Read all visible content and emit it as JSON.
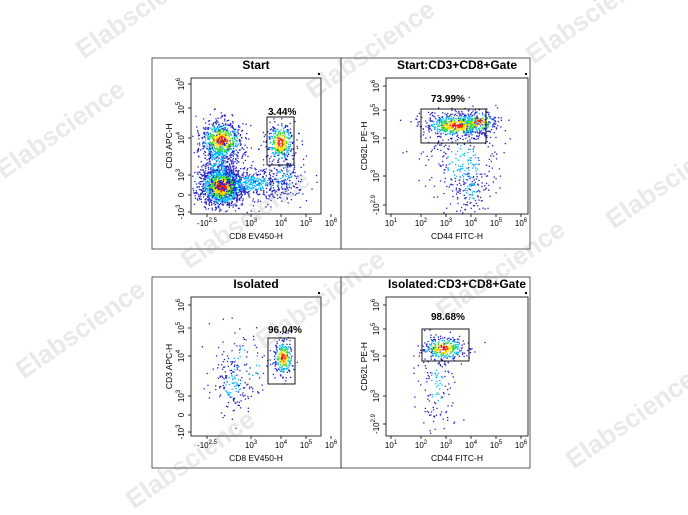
{
  "watermark": "Elabscience",
  "chart_data": [
    {
      "type": "scatter",
      "title": "Start",
      "xlabel": "CD8 EV450-H",
      "ylabel": "CD3 APC-H",
      "xticks": [
        {
          "t": "-10",
          "s": "2.5"
        },
        {
          "t": "10",
          "s": "3"
        },
        {
          "t": "10",
          "s": "4"
        },
        {
          "t": "10",
          "s": "5"
        },
        {
          "t": "10",
          "s": "6"
        }
      ],
      "yticks": [
        {
          "t": "-10",
          "s": "3"
        },
        {
          "t": "0",
          "s": ""
        },
        {
          "t": "10",
          "s": "3"
        },
        {
          "t": "10",
          "s": "4"
        },
        {
          "t": "10",
          "s": "5"
        },
        {
          "t": "10",
          "s": "6"
        }
      ],
      "gate_label": "3.44%"
    },
    {
      "type": "scatter",
      "title": "Start:CD3+CD8+Gate",
      "xlabel": "CD44 FITC-H",
      "ylabel": "CD62L PE-H",
      "xticks": [
        {
          "t": "10",
          "s": "1"
        },
        {
          "t": "10",
          "s": "2"
        },
        {
          "t": "10",
          "s": "3"
        },
        {
          "t": "10",
          "s": "4"
        },
        {
          "t": "10",
          "s": "5"
        },
        {
          "t": "10",
          "s": "6"
        }
      ],
      "yticks": [
        {
          "t": "-10",
          "s": "2.9"
        },
        {
          "t": "10",
          "s": "3"
        },
        {
          "t": "10",
          "s": "4"
        },
        {
          "t": "10",
          "s": "5"
        },
        {
          "t": "10",
          "s": "6"
        }
      ],
      "gate_label": "73.99%"
    },
    {
      "type": "scatter",
      "title": "Isolated",
      "xlabel": "CD8 EV450-H",
      "ylabel": "CD3 APC-H",
      "xticks": [
        {
          "t": "-10",
          "s": "2.5"
        },
        {
          "t": "10",
          "s": "3"
        },
        {
          "t": "10",
          "s": "4"
        },
        {
          "t": "10",
          "s": "5"
        },
        {
          "t": "10",
          "s": "6"
        }
      ],
      "yticks": [
        {
          "t": "-10",
          "s": "3"
        },
        {
          "t": "0",
          "s": ""
        },
        {
          "t": "10",
          "s": "3"
        },
        {
          "t": "10",
          "s": "4"
        },
        {
          "t": "10",
          "s": "5"
        },
        {
          "t": "10",
          "s": "6"
        }
      ],
      "gate_label": "96.04%"
    },
    {
      "type": "scatter",
      "title": "Isolated:CD3+CD8+Gate",
      "xlabel": "CD44 FITC-H",
      "ylabel": "CD62L PE-H",
      "xticks": [
        {
          "t": "10",
          "s": "1"
        },
        {
          "t": "10",
          "s": "2"
        },
        {
          "t": "10",
          "s": "3"
        },
        {
          "t": "10",
          "s": "4"
        },
        {
          "t": "10",
          "s": "5"
        },
        {
          "t": "10",
          "s": "6"
        }
      ],
      "yticks": [
        {
          "t": "-10",
          "s": "2.9"
        },
        {
          "t": "10",
          "s": "3"
        },
        {
          "t": "10",
          "s": "4"
        },
        {
          "t": "10",
          "s": "5"
        },
        {
          "t": "10",
          "s": "6"
        }
      ],
      "gate_label": "98.68%"
    }
  ],
  "colors": {
    "dot_low": "#2222cc",
    "dot_mid": "#00b7ff",
    "dot_mid2": "#33dd33",
    "dot_high": "#ffdd00",
    "dot_peak": "#ff2200",
    "axis": "#000000"
  }
}
